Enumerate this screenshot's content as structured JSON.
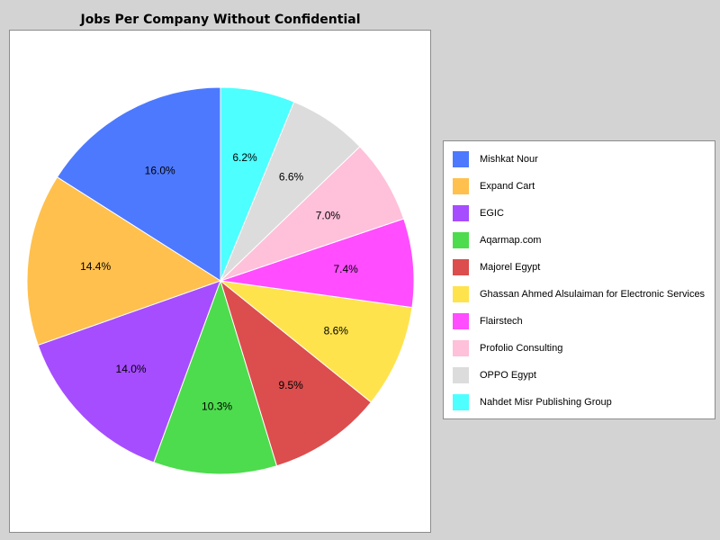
{
  "chart_data": {
    "type": "pie",
    "title": "Jobs Per Company Without Confidential",
    "legend_position": "right",
    "start_angle": "12 o'clock",
    "direction": "counterclockwise",
    "slices": [
      {
        "label": "Mishkat Nour",
        "value": 16.0,
        "display": "16.0%",
        "color": "#4d79ff"
      },
      {
        "label": "Expand Cart",
        "value": 14.4,
        "display": "14.4%",
        "color": "#ffc04d"
      },
      {
        "label": "EGIC",
        "value": 14.0,
        "display": "14.0%",
        "color": "#a64dff"
      },
      {
        "label": "Aqarmap.com",
        "value": 10.3,
        "display": "10.3%",
        "color": "#4ddc4d"
      },
      {
        "label": "Majorel Egypt",
        "value": 9.5,
        "display": "9.5%",
        "color": "#dc4d4d"
      },
      {
        "label": "Ghassan Ahmed Alsulaiman for Electronic Services",
        "value": 8.6,
        "display": "8.6%",
        "color": "#ffe34d"
      },
      {
        "label": "Flairstech",
        "value": 7.4,
        "display": "7.4%",
        "color": "#ff4dff"
      },
      {
        "label": "Profolio Consulting",
        "value": 7.0,
        "display": "7.0%",
        "color": "#ffc0da"
      },
      {
        "label": "OPPO Egypt",
        "value": 6.6,
        "display": "6.6%",
        "color": "#dcdcdc"
      },
      {
        "label": "Nahdet Misr Publishing Group",
        "value": 6.2,
        "display": "6.2%",
        "color": "#4dffff"
      }
    ]
  }
}
